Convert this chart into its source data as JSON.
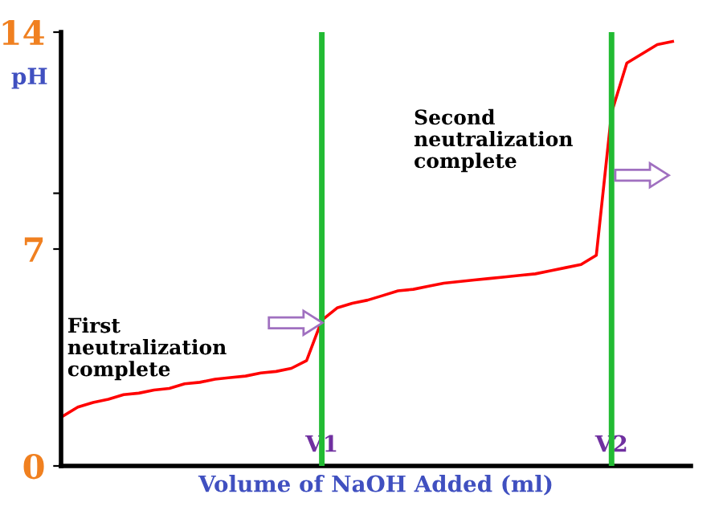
{
  "chart_data": {
    "type": "line",
    "xlabel": "Volume of NaOH Added (ml)",
    "ylabel": "pH",
    "categories": [
      null,
      null,
      null,
      null,
      null,
      null,
      null,
      null,
      null,
      null,
      null,
      null,
      null,
      null,
      null,
      null,
      null,
      "V1",
      null,
      null,
      null,
      null,
      null,
      null,
      null,
      null,
      null,
      null,
      null,
      null,
      null,
      null,
      null,
      null,
      null,
      null,
      "V2",
      null,
      null,
      null,
      null
    ],
    "series": [
      {
        "color": "#ff0000",
        "values": [
          1.6,
          1.9,
          2.05,
          2.15,
          2.3,
          2.35,
          2.45,
          2.5,
          2.65,
          2.7,
          2.8,
          2.85,
          2.9,
          3.0,
          3.05,
          3.15,
          3.4,
          4.7,
          5.1,
          5.25,
          5.35,
          5.5,
          5.65,
          5.7,
          5.8,
          5.9,
          5.95,
          6.0,
          6.05,
          6.1,
          6.15,
          6.2,
          6.3,
          6.4,
          6.5,
          6.8,
          11.4,
          13.0,
          13.3,
          13.6,
          13.7
        ]
      }
    ],
    "ylim": [
      0,
      14
    ],
    "yticks": [
      0,
      7,
      {
        "value": 8.8,
        "label": null
      },
      14
    ],
    "ref_lines": [
      {
        "axis": "x",
        "value": "V1",
        "color": "#22bb33"
      },
      {
        "axis": "x",
        "value": "V2",
        "color": "#22bb33"
      }
    ],
    "annotations": [
      "First\nneutralization\ncomplete",
      "Second\nneutralization\ncomplete"
    ],
    "grid": false,
    "legend": false,
    "marker": "none",
    "line_style": "solid"
  }
}
